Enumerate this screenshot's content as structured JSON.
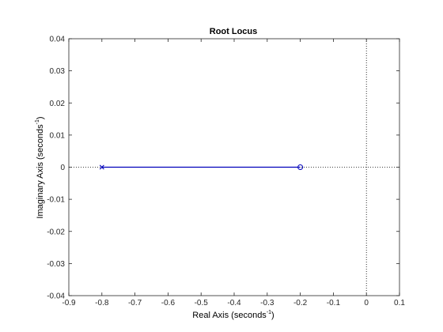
{
  "chart_data": {
    "type": "line",
    "title": "Root Locus",
    "xlabel": {
      "text": "Real Axis (seconds",
      "sup": "-1",
      "close": ")"
    },
    "ylabel": {
      "text": "Imaginary Axis (seconds",
      "sup": "-1",
      "close": ")"
    },
    "xlim": [
      -0.9,
      0.1
    ],
    "ylim": [
      -0.04,
      0.04
    ],
    "x_ticks": [
      -0.9,
      -0.8,
      -0.7,
      -0.6,
      -0.5,
      -0.4,
      -0.3,
      -0.2,
      -0.1,
      0,
      0.1
    ],
    "x_tick_labels": [
      "-0.9",
      "-0.8",
      "-0.7",
      "-0.6",
      "-0.5",
      "-0.4",
      "-0.3",
      "-0.2",
      "-0.1",
      "0",
      "0.1"
    ],
    "y_ticks": [
      0.04,
      0.03,
      0.02,
      0.01,
      0,
      -0.01,
      -0.02,
      -0.03,
      -0.04
    ],
    "y_tick_labels": [
      "0.04",
      "0.03",
      "0.02",
      "0.01",
      "0",
      "-0.01",
      "-0.02",
      "-0.03",
      "-0.04"
    ],
    "grid": false,
    "reference_lines": {
      "x": 0,
      "y": 0,
      "style": "dotted",
      "color": "#000000"
    },
    "series": [
      {
        "x": [
          -0.8,
          -0.2
        ],
        "y": [
          0,
          0
        ],
        "color": "#0000bb"
      }
    ],
    "poles": [
      {
        "x": -0.8,
        "y": 0,
        "marker": "x",
        "color": "#0000bb"
      }
    ],
    "zeros": [
      {
        "x": -0.2,
        "y": 0,
        "marker": "o",
        "color": "#0000bb"
      }
    ]
  }
}
